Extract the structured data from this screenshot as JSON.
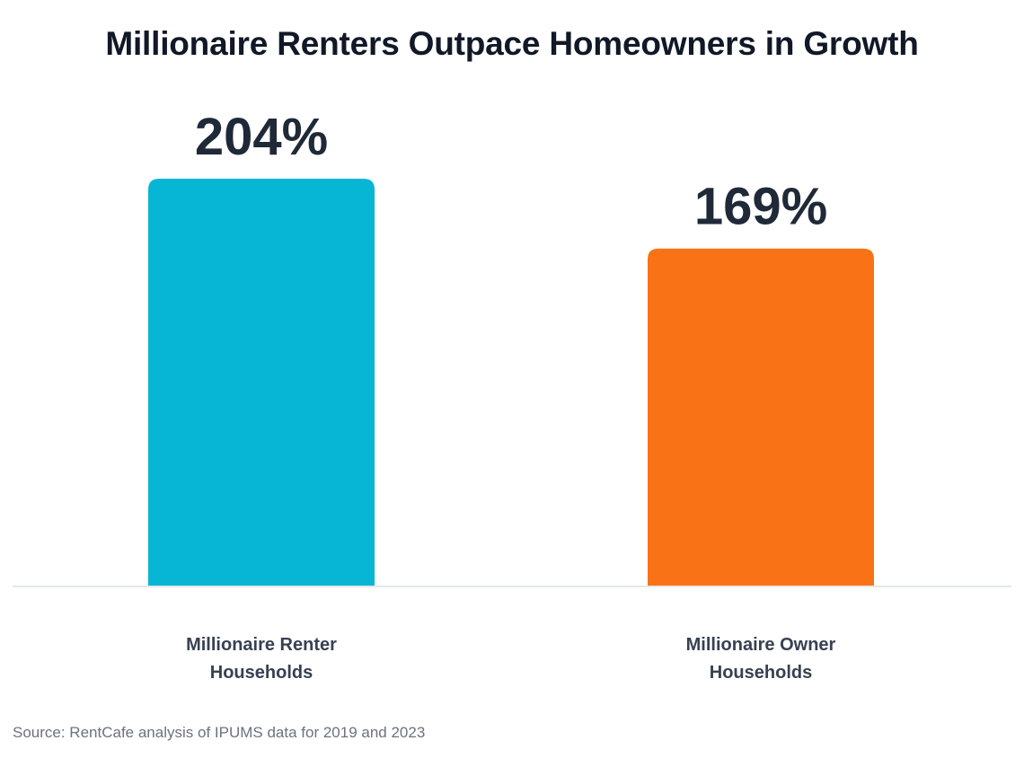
{
  "chart_data": {
    "type": "bar",
    "title": "Millionaire Renters Outpace Homeowners in Growth",
    "categories": [
      "Millionaire Renter Households",
      "Millionaire Owner Households"
    ],
    "category_lines": [
      [
        "Millionaire Renter",
        "Households"
      ],
      [
        "Millionaire Owner",
        "Households"
      ]
    ],
    "values": [
      204,
      169
    ],
    "value_labels": [
      "204%",
      "169%"
    ],
    "colors": [
      "#06b6d4",
      "#f97316"
    ],
    "xlabel": "",
    "ylabel": "",
    "ylim": [
      0,
      204
    ],
    "grid": false,
    "legend": "none"
  },
  "source": "Source: RentCafe analysis of IPUMS data for 2019 and 2023"
}
